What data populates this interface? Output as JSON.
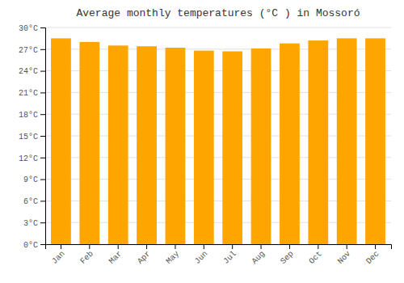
{
  "chart_data": {
    "type": "bar",
    "title": "Average monthly temperatures (°C ) in Mossoró",
    "categories": [
      "Jan",
      "Feb",
      "Mar",
      "Apr",
      "May",
      "Jun",
      "Jul",
      "Aug",
      "Sep",
      "Oct",
      "Nov",
      "Dec"
    ],
    "values": [
      28.5,
      28.0,
      27.5,
      27.4,
      27.2,
      26.8,
      26.7,
      27.1,
      27.8,
      28.2,
      28.5,
      28.5
    ],
    "color": "#FFA500",
    "ylim": [
      0,
      30
    ],
    "yticks": [
      {
        "value": 0,
        "label": "0°C"
      },
      {
        "value": 3,
        "label": "3°C"
      },
      {
        "value": 6,
        "label": "6°C"
      },
      {
        "value": 9,
        "label": "9°C"
      },
      {
        "value": 12,
        "label": "12°C"
      },
      {
        "value": 15,
        "label": "15°C"
      },
      {
        "value": 18,
        "label": "18°C"
      },
      {
        "value": 21,
        "label": "21°C"
      },
      {
        "value": 24,
        "label": "24°C"
      },
      {
        "value": 27,
        "label": "27°C"
      },
      {
        "value": 30,
        "label": "30°C"
      }
    ],
    "grid": true
  }
}
